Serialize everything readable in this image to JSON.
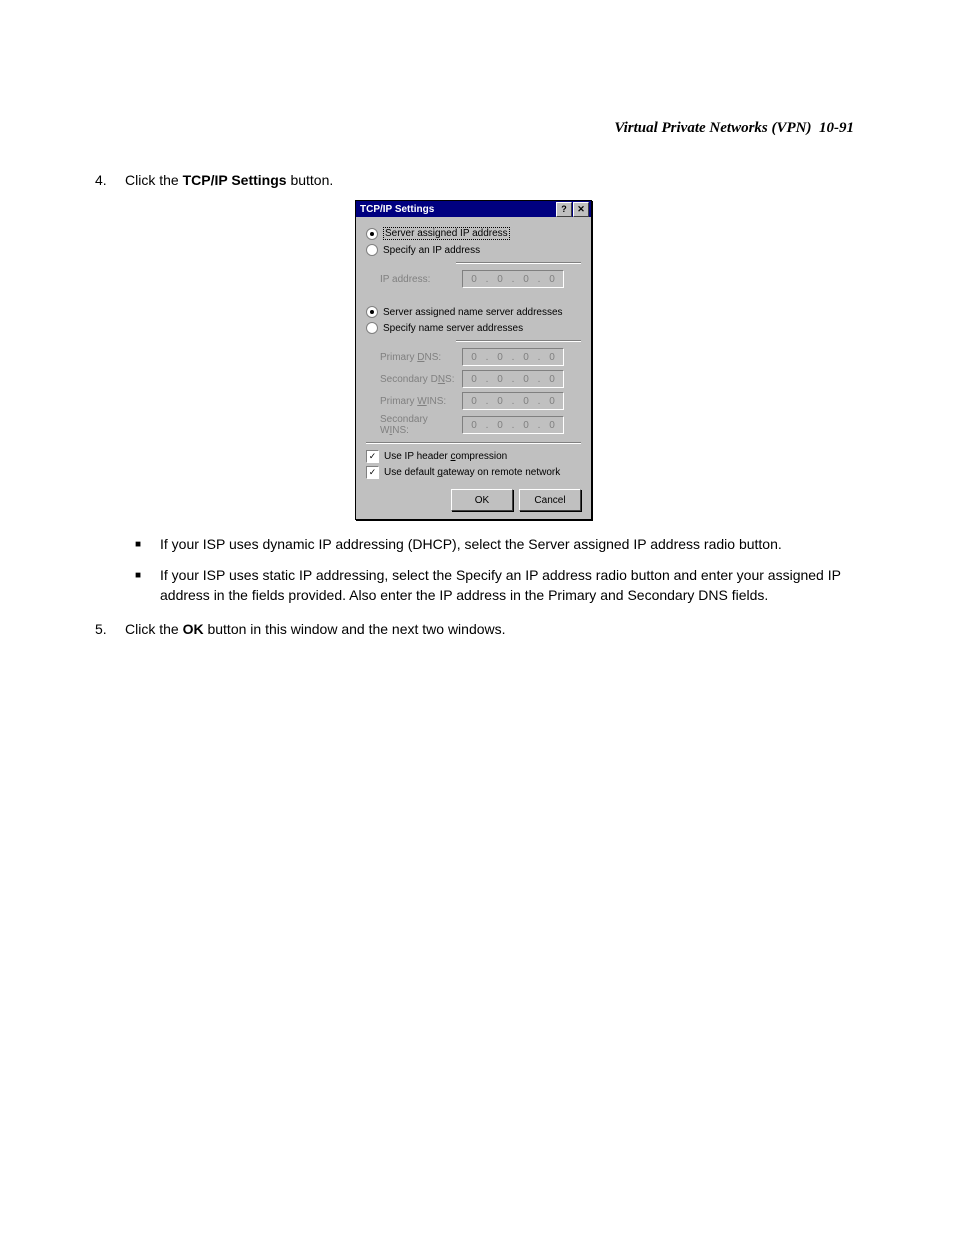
{
  "header": {
    "title": "Virtual Private Networks (VPN)",
    "page": "10-91"
  },
  "steps": {
    "s4_num": "4.",
    "s4_pre": "Click the ",
    "s4_bold": "TCP/IP Settings",
    "s4_post": " button.",
    "s5_num": "5.",
    "s5_pre": "Click the ",
    "s5_bold": "OK",
    "s5_post": " button in this window and the next two windows."
  },
  "bullets": {
    "b1": "If your ISP uses dynamic IP addressing (DHCP), select the Server assigned IP address radio button.",
    "b2": "If your ISP uses static IP addressing, select the Specify an IP address radio button and enter your assigned IP address in the fields provided. Also enter the IP address in the Primary and Secondary DNS fields."
  },
  "dialog": {
    "title": "TCP/IP Settings",
    "help_glyph": "?",
    "close_glyph": "✕",
    "radios": {
      "ip_auto": "Server assigned IP address",
      "ip_manual": "Specify an IP address",
      "ns_auto": "Server assigned name server addresses",
      "ns_manual": "Specify name server addresses"
    },
    "labels": {
      "ip": "IP address:",
      "pdns_pre": "Primary ",
      "pdns_u": "D",
      "pdns_post": "NS:",
      "sdns_pre": "Secondary D",
      "sdns_u": "N",
      "sdns_post": "S:",
      "pwins_pre": "Primary ",
      "pwins_u": "W",
      "pwins_post": "INS:",
      "swins_pre": "Secondary W",
      "swins_u": "I",
      "swins_post": "NS:"
    },
    "oct": "0",
    "chk1_pre": "Use IP header ",
    "chk1_u": "c",
    "chk1_post": "ompression",
    "chk2_pre": "Use default ",
    "chk2_u": "g",
    "chk2_post": "ateway on remote network",
    "check_glyph": "✓",
    "buttons": {
      "ok": "OK",
      "cancel": "Cancel"
    }
  }
}
